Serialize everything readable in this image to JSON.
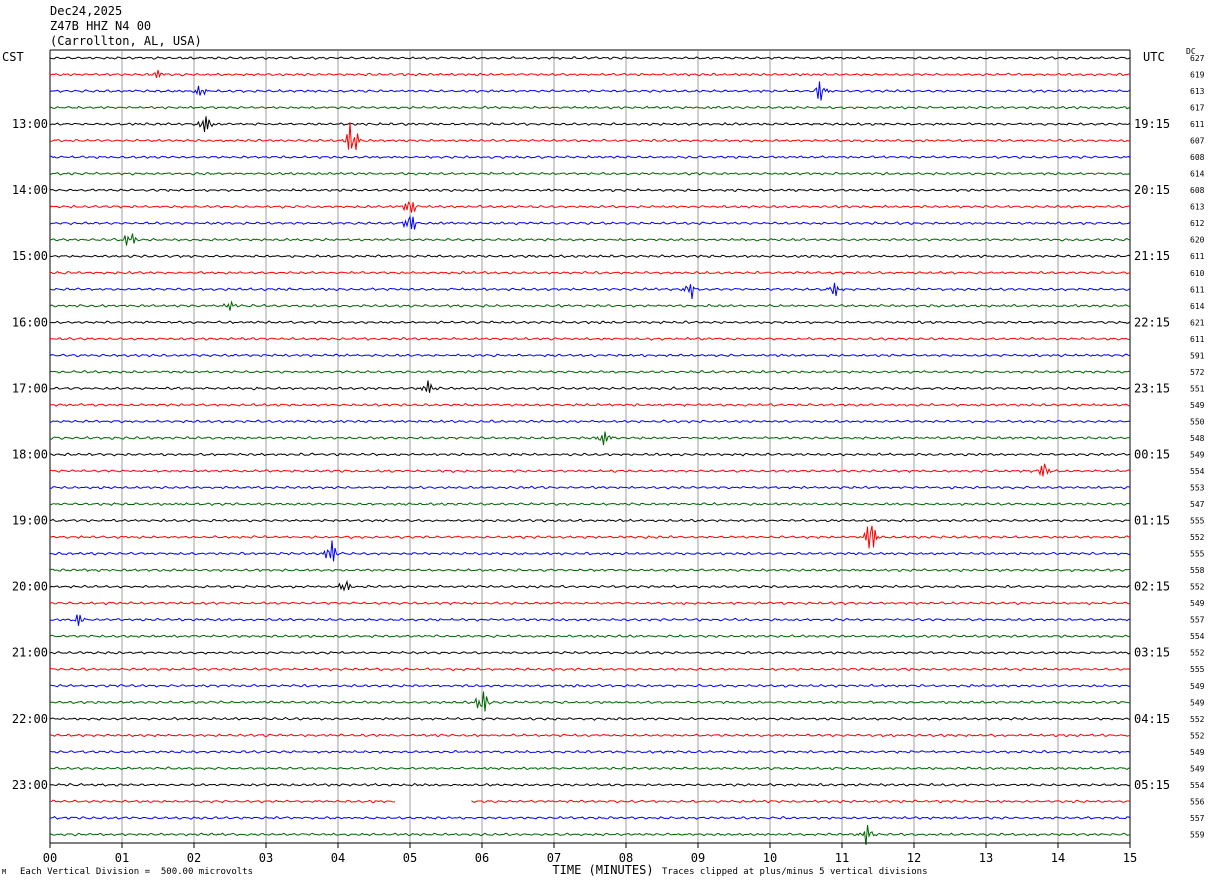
{
  "header": {
    "date": "Dec24,2025",
    "station": "Z47B HHZ N4 00",
    "location": "(Carrollton, AL, USA)"
  },
  "left_timezone": "CST",
  "right_timezone": "UTC",
  "dc_label": "DC",
  "footer": {
    "scale_note": "Each Vertical Division =  500.00 microvolts",
    "clip_note": "Traces clipped at plus/minus 5 vertical divisions",
    "corner_mark": "M"
  },
  "colors": {
    "trace_cycle": [
      "#000000",
      "#ff0000",
      "#0000ff",
      "#006400"
    ],
    "grid": "#888888"
  },
  "chart_data": {
    "type": "line",
    "title": "",
    "xlabel": "TIME (MINUTES)",
    "x_ticks": [
      "00",
      "01",
      "02",
      "03",
      "04",
      "05",
      "06",
      "07",
      "08",
      "09",
      "10",
      "11",
      "12",
      "13",
      "14",
      "15"
    ],
    "xlim": [
      0,
      15
    ],
    "left_hour_labels": [
      "13:00",
      "14:00",
      "15:00",
      "16:00",
      "17:00",
      "18:00",
      "19:00",
      "20:00",
      "21:00",
      "22:00",
      "23:00"
    ],
    "right_hour_labels": [
      "19:15",
      "20:15",
      "21:15",
      "22:15",
      "23:15",
      "00:15",
      "01:15",
      "02:15",
      "03:15",
      "04:15",
      "05:15"
    ],
    "dc_values": [
      "627",
      "619",
      "613",
      "617",
      "611",
      "607",
      "608",
      "614",
      "608",
      "613",
      "612",
      "620",
      "611",
      "610",
      "611",
      "614",
      "621",
      "611",
      "591",
      "572",
      "551",
      "549",
      "550",
      "548",
      "549",
      "554",
      "553",
      "547",
      "555",
      "552",
      "555",
      "558",
      "552",
      "549",
      "557",
      "554",
      "552",
      "555",
      "549",
      "549",
      "552",
      "552",
      "549",
      "549",
      "554",
      "556",
      "557",
      "559"
    ],
    "events": [
      {
        "trace": 1,
        "minute": 1.5,
        "amp": 0.5
      },
      {
        "trace": 2,
        "minute": 2.1,
        "amp": 0.6
      },
      {
        "trace": 2,
        "minute": 10.7,
        "amp": 0.9
      },
      {
        "trace": 4,
        "minute": 2.15,
        "amp": 1.3
      },
      {
        "trace": 5,
        "minute": 4.2,
        "amp": 2.2
      },
      {
        "trace": 9,
        "minute": 5.0,
        "amp": 0.9
      },
      {
        "trace": 10,
        "minute": 5.0,
        "amp": 1.2
      },
      {
        "trace": 11,
        "minute": 1.1,
        "amp": 0.9
      },
      {
        "trace": 14,
        "minute": 8.9,
        "amp": 0.8
      },
      {
        "trace": 14,
        "minute": 10.9,
        "amp": 0.8
      },
      {
        "trace": 15,
        "minute": 2.5,
        "amp": 0.5
      },
      {
        "trace": 20,
        "minute": 5.25,
        "amp": 0.8
      },
      {
        "trace": 23,
        "minute": 7.7,
        "amp": 0.9
      },
      {
        "trace": 25,
        "minute": 13.8,
        "amp": 0.8
      },
      {
        "trace": 29,
        "minute": 11.4,
        "amp": 1.6
      },
      {
        "trace": 30,
        "minute": 3.9,
        "amp": 1.2
      },
      {
        "trace": 32,
        "minute": 4.1,
        "amp": 0.6
      },
      {
        "trace": 34,
        "minute": 0.4,
        "amp": 0.6
      },
      {
        "trace": 39,
        "minute": 6.0,
        "amp": 1.4
      },
      {
        "trace": 47,
        "minute": 11.35,
        "amp": 0.9
      }
    ],
    "gaps": [
      {
        "trace": 45,
        "from_minute": 4.8,
        "to_minute": 5.85
      }
    ]
  }
}
